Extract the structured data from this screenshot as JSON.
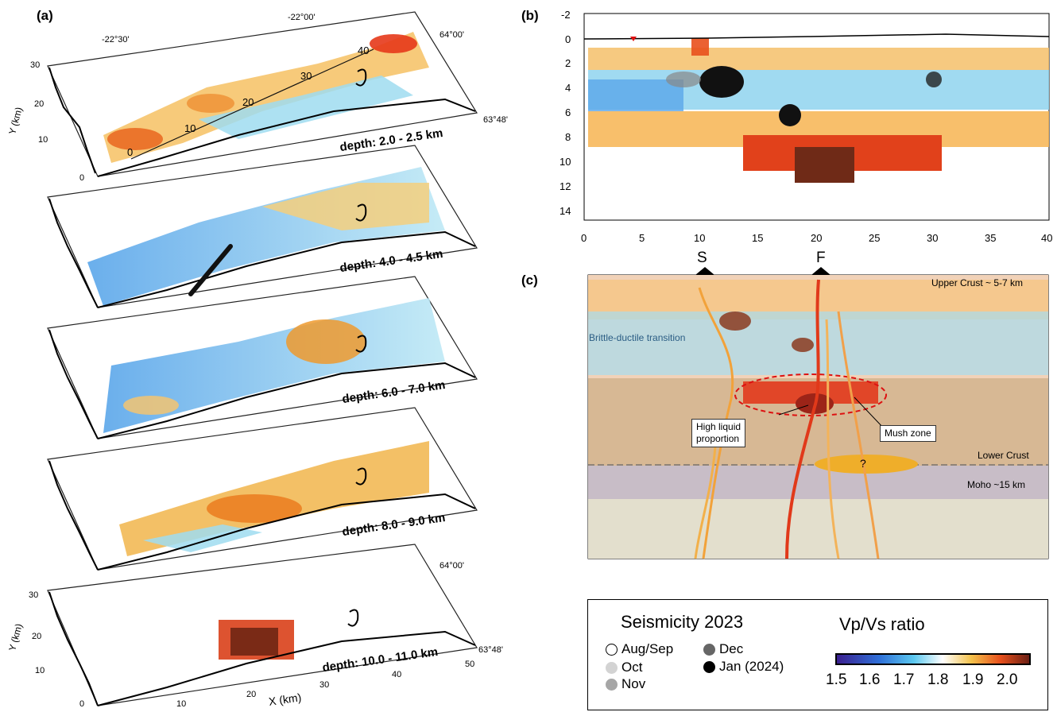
{
  "panel_a": {
    "letter": "(a)",
    "lon_labels": [
      "-22°30'",
      "-22°00'"
    ],
    "lat_labels_top": [
      "64°00'",
      "63°48'"
    ],
    "lat_labels_bottom": [
      "64°00'",
      "63°48'"
    ],
    "y_axis_label": "Y (km)",
    "x_axis_label": "X (km)",
    "y_ticks": [
      "30",
      "20",
      "10",
      "0"
    ],
    "x_ticks": [
      "10",
      "20",
      "30",
      "40",
      "50"
    ],
    "profile_ticks": [
      "0",
      "10",
      "20",
      "30",
      "40"
    ],
    "depth_slices": [
      {
        "label": "depth: 2.0 - 2.5 km"
      },
      {
        "label": "depth: 4.0 - 4.5 km"
      },
      {
        "label": "depth: 6.0 - 7.0 km"
      },
      {
        "label": "depth: 8.0 - 9.0 km"
      },
      {
        "label": "depth: 10.0 - 11.0 km"
      }
    ]
  },
  "panel_b": {
    "letter": "(b)",
    "y_ticks": [
      "-2",
      "0",
      "2",
      "4",
      "6",
      "8",
      "10",
      "12",
      "14"
    ],
    "x_ticks": [
      "0",
      "5",
      "10",
      "15",
      "20",
      "25",
      "30",
      "35",
      "40"
    ]
  },
  "panel_c": {
    "letter": "(c)",
    "marker_s": "S",
    "marker_f": "F",
    "labels": {
      "upper_crust": "Upper Crust ~ 5-7 km",
      "brittle": "Brittle-ductile transition",
      "lower_crust": "Lower Crust",
      "moho": "Moho ~15 km",
      "question": "?",
      "high_liquid": "High liquid\nproportion",
      "mush": "Mush zone"
    }
  },
  "legend": {
    "seismicity_title": "Seismicity 2023",
    "vpvs_title": "Vp/Vs ratio",
    "items": [
      {
        "label": "Aug/Sep",
        "color": "#ffffff",
        "border": "#000000"
      },
      {
        "label": "Oct",
        "color": "#d3d3d3",
        "border": "#d3d3d3"
      },
      {
        "label": "Nov",
        "color": "#a6a6a6",
        "border": "#a6a6a6"
      },
      {
        "label": "Dec",
        "color": "#666666",
        "border": "#666666"
      },
      {
        "label": "Jan (2024)",
        "color": "#000000",
        "border": "#000000"
      }
    ],
    "colorbar_ticks": [
      "1.5",
      "1.6",
      "1.7",
      "1.8",
      "1.9",
      "2.0"
    ],
    "colorbar_colors": [
      "#3b1f8f",
      "#2f6fd8",
      "#5bc8ef",
      "#ffffff",
      "#f3c14a",
      "#e8501c",
      "#6b1f14"
    ]
  }
}
